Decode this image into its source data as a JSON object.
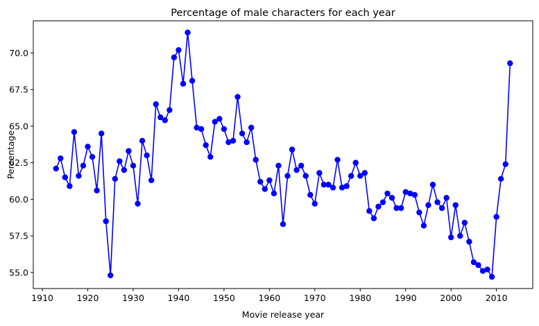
{
  "chart_data": {
    "type": "line",
    "title": "Percentage of male characters for each year",
    "xlabel": "Movie release year",
    "ylabel": "Percentage",
    "xlim": [
      1908,
      2018
    ],
    "ylim": [
      53.9,
      72.2
    ],
    "xticks": [
      1910,
      1920,
      1930,
      1940,
      1950,
      1960,
      1970,
      1980,
      1990,
      2000,
      2010
    ],
    "yticks": [
      55.0,
      57.5,
      60.0,
      62.5,
      65.0,
      67.5,
      70.0
    ],
    "yticks_labels": [
      "55.0",
      "57.5",
      "60.0",
      "62.5",
      "65.0",
      "67.5",
      "70.0"
    ],
    "grid": false,
    "legend": "none",
    "line_color": "#0000ff",
    "marker": "circle",
    "x": [
      1913,
      1914,
      1915,
      1916,
      1917,
      1918,
      1919,
      1920,
      1921,
      1922,
      1923,
      1924,
      1925,
      1926,
      1927,
      1928,
      1929,
      1930,
      1931,
      1932,
      1933,
      1934,
      1935,
      1936,
      1937,
      1938,
      1939,
      1940,
      1941,
      1942,
      1943,
      1944,
      1945,
      1946,
      1947,
      1948,
      1949,
      1950,
      1951,
      1952,
      1953,
      1954,
      1955,
      1956,
      1957,
      1958,
      1959,
      1960,
      1961,
      1962,
      1963,
      1964,
      1965,
      1966,
      1967,
      1968,
      1969,
      1970,
      1971,
      1972,
      1973,
      1974,
      1975,
      1976,
      1977,
      1978,
      1979,
      1980,
      1981,
      1982,
      1983,
      1984,
      1985,
      1986,
      1987,
      1988,
      1989,
      1990,
      1991,
      1992,
      1993,
      1994,
      1995,
      1996,
      1997,
      1998,
      1999,
      2000,
      2001,
      2002,
      2003,
      2004,
      2005,
      2006,
      2007,
      2008,
      2009,
      2010,
      2011,
      2012,
      2013
    ],
    "y": [
      62.1,
      62.8,
      61.5,
      60.9,
      64.6,
      61.6,
      62.3,
      63.6,
      62.9,
      60.6,
      64.5,
      58.5,
      54.8,
      61.4,
      62.6,
      62.0,
      63.3,
      62.3,
      59.7,
      64.0,
      63.0,
      61.3,
      66.5,
      65.6,
      65.4,
      66.1,
      69.7,
      70.2,
      67.9,
      71.4,
      68.1,
      64.9,
      64.8,
      63.7,
      62.9,
      65.3,
      65.5,
      64.8,
      63.9,
      64.0,
      67.0,
      64.5,
      63.9,
      64.9,
      62.7,
      61.2,
      60.7,
      61.3,
      60.4,
      62.3,
      58.3,
      61.6,
      63.4,
      62.0,
      62.3,
      61.6,
      60.3,
      59.7,
      61.8,
      61.0,
      61.0,
      60.8,
      62.7,
      60.8,
      60.9,
      61.6,
      62.5,
      61.6,
      61.8,
      59.2,
      58.7,
      59.5,
      59.8,
      60.4,
      60.1,
      59.4,
      59.4,
      60.5,
      60.4,
      60.3,
      59.1,
      58.2,
      59.6,
      61.0,
      59.8,
      59.4,
      60.1,
      57.4,
      59.6,
      57.5,
      58.4,
      57.1,
      55.7,
      55.5,
      55.1,
      55.2,
      54.7,
      58.8,
      61.4,
      62.4,
      69.3
    ]
  }
}
